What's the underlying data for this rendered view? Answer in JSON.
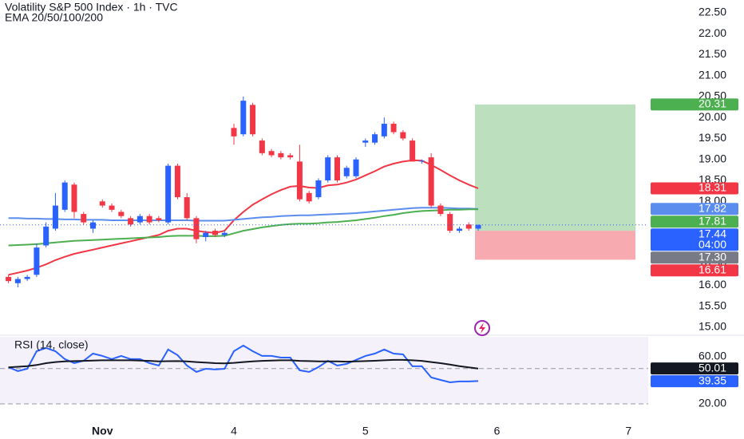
{
  "chart_data": [
    {
      "type": "candlestick",
      "title": "Volatility S&P 500 Index · 1h · TVC",
      "subtitle": "EMA 20/50/100/200",
      "x": [
        0,
        1,
        2,
        3,
        4,
        5,
        6,
        7,
        8,
        9,
        10,
        11,
        12,
        13,
        14,
        15,
        16,
        17,
        18,
        19,
        20,
        21,
        22,
        23,
        24,
        25,
        26,
        27,
        28,
        29,
        30,
        31,
        32,
        33,
        34,
        35,
        36,
        37,
        38,
        39,
        40,
        41,
        42,
        43,
        44,
        45,
        46,
        47,
        48,
        49,
        50
      ],
      "open": [
        16.2,
        16.05,
        16.15,
        16.25,
        16.95,
        17.35,
        17.8,
        18.4,
        17.7,
        17.35,
        18.0,
        17.9,
        17.75,
        17.6,
        17.5,
        17.65,
        17.6,
        17.5,
        18.85,
        18.1,
        17.6,
        17.15,
        17.3,
        17.2,
        19.75,
        19.6,
        20.3,
        19.45,
        19.2,
        19.15,
        19.1,
        18.95,
        18.2,
        18.1,
        18.5,
        19.05,
        18.6,
        18.6,
        19.4,
        19.4,
        19.55,
        19.85,
        19.65,
        19.45,
        18.95,
        19.05,
        17.9,
        17.7,
        17.3,
        17.45,
        17.35
      ],
      "high": [
        16.25,
        16.2,
        16.25,
        17.0,
        17.5,
        18.2,
        18.5,
        18.45,
        17.75,
        17.55,
        18.05,
        17.95,
        17.8,
        17.65,
        17.7,
        17.7,
        17.65,
        18.9,
        18.9,
        18.2,
        17.65,
        17.3,
        17.35,
        17.3,
        19.85,
        20.5,
        20.35,
        19.5,
        19.25,
        19.2,
        19.15,
        19.35,
        18.25,
        18.55,
        19.1,
        19.1,
        18.85,
        19.05,
        19.5,
        19.65,
        20.0,
        19.9,
        19.7,
        19.5,
        19.0,
        19.15,
        17.95,
        17.75,
        17.4,
        17.5,
        17.45
      ],
      "low": [
        16.05,
        15.95,
        16.1,
        16.2,
        16.9,
        17.3,
        17.75,
        17.6,
        17.45,
        17.25,
        17.85,
        17.75,
        17.6,
        17.4,
        17.45,
        17.45,
        17.5,
        17.45,
        18.05,
        17.55,
        17.0,
        17.05,
        17.15,
        17.15,
        19.35,
        19.55,
        19.55,
        19.1,
        19.05,
        19.0,
        19.0,
        18.0,
        17.95,
        18.05,
        18.45,
        18.45,
        18.55,
        18.55,
        19.3,
        19.35,
        19.5,
        19.6,
        19.45,
        18.95,
        18.9,
        17.85,
        17.65,
        17.25,
        17.25,
        17.3,
        17.3
      ],
      "close": [
        16.1,
        16.15,
        16.2,
        16.9,
        17.4,
        17.9,
        18.45,
        17.75,
        17.5,
        17.5,
        17.9,
        17.8,
        17.65,
        17.45,
        17.65,
        17.5,
        17.55,
        18.85,
        18.1,
        17.6,
        17.1,
        17.25,
        17.2,
        17.25,
        19.55,
        20.4,
        19.6,
        19.15,
        19.1,
        19.05,
        19.05,
        18.05,
        18.0,
        18.5,
        19.05,
        18.5,
        18.8,
        19.0,
        19.45,
        19.6,
        19.85,
        19.65,
        19.5,
        18.95,
        18.97,
        17.9,
        17.7,
        17.3,
        17.35,
        17.35,
        17.44
      ],
      "up_color": "#2962ff",
      "down_color": "#f23645",
      "series": [
        {
          "color": "#f23645",
          "values": [
            16.25,
            16.3,
            16.35,
            16.42,
            16.5,
            16.6,
            16.68,
            16.75,
            16.8,
            16.85,
            16.9,
            16.95,
            17.0,
            17.05,
            17.1,
            17.15,
            17.2,
            17.3,
            17.35,
            17.35,
            17.3,
            17.27,
            17.25,
            17.3,
            17.55,
            17.75,
            17.92,
            18.05,
            18.17,
            18.27,
            18.35,
            18.37,
            18.33,
            18.32,
            18.38,
            18.4,
            18.45,
            18.52,
            18.62,
            18.72,
            18.83,
            18.9,
            18.95,
            18.98,
            18.97,
            18.87,
            18.75,
            18.62,
            18.5,
            18.4,
            18.31
          ]
        },
        {
          "color": "#5b8def",
          "values": [
            17.6,
            17.6,
            17.59,
            17.59,
            17.58,
            17.58,
            17.57,
            17.57,
            17.56,
            17.56,
            17.56,
            17.55,
            17.55,
            17.55,
            17.55,
            17.55,
            17.55,
            17.55,
            17.55,
            17.55,
            17.54,
            17.54,
            17.54,
            17.54,
            17.56,
            17.58,
            17.6,
            17.62,
            17.63,
            17.65,
            17.66,
            17.67,
            17.67,
            17.68,
            17.69,
            17.7,
            17.71,
            17.72,
            17.74,
            17.76,
            17.78,
            17.8,
            17.82,
            17.84,
            17.85,
            17.85,
            17.85,
            17.84,
            17.83,
            17.83,
            17.82
          ]
        },
        {
          "color": "#4caf50",
          "values": [
            16.95,
            16.96,
            16.97,
            16.98,
            17.0,
            17.02,
            17.04,
            17.06,
            17.07,
            17.08,
            17.09,
            17.1,
            17.11,
            17.12,
            17.13,
            17.14,
            17.15,
            17.17,
            17.18,
            17.18,
            17.18,
            17.17,
            17.17,
            17.18,
            17.24,
            17.3,
            17.34,
            17.38,
            17.41,
            17.44,
            17.46,
            17.47,
            17.47,
            17.48,
            17.5,
            17.51,
            17.53,
            17.55,
            17.58,
            17.61,
            17.65,
            17.68,
            17.72,
            17.75,
            17.77,
            17.78,
            17.79,
            17.8,
            17.8,
            17.81,
            17.81
          ]
        }
      ],
      "countdown": "04:00",
      "position": {
        "target": 20.31,
        "entry": {
          "value": 17.3,
          "label": "17.30"
        },
        "stop": 16.61
      },
      "xlim": [
        -0.9,
        68.1
      ],
      "xticks": [
        {
          "value": 10,
          "label": "Nov"
        },
        {
          "value": 24,
          "label": "4"
        },
        {
          "value": 38,
          "label": "5"
        },
        {
          "value": 52,
          "label": "6"
        },
        {
          "value": 66,
          "label": "7"
        }
      ],
      "ylim": [
        14.81,
        22.8
      ],
      "yticks": [
        {
          "value": 15,
          "label": "15.00"
        },
        {
          "value": 15.5,
          "label": "15.50"
        },
        {
          "value": 16,
          "label": "16.00"
        },
        {
          "value": 16.5,
          "label": "16.50"
        },
        {
          "value": 17,
          "label": "17.00"
        },
        {
          "value": 17.5,
          "label": "17.50"
        },
        {
          "value": 18,
          "label": "18.00"
        },
        {
          "value": 18.5,
          "label": "18.50"
        },
        {
          "value": 19,
          "label": "19.00"
        },
        {
          "value": 19.5,
          "label": "19.50"
        },
        {
          "value": 20,
          "label": "20.00"
        },
        {
          "value": 20.5,
          "label": "20.50"
        },
        {
          "value": 21,
          "label": "21.00"
        },
        {
          "value": 21.5,
          "label": "21.50"
        },
        {
          "value": 22,
          "label": "22.00"
        },
        {
          "value": 22.5,
          "label": "22.50"
        }
      ]
    },
    {
      "type": "line",
      "title": "RSI (14, close)",
      "series": [
        {
          "color": "#2962ff",
          "values": [
            51.2,
            47.8,
            49.8,
            64.7,
            67.5,
            64.7,
            58.0,
            54.6,
            56.6,
            62.7,
            60.7,
            58.0,
            60.7,
            58.0,
            58.0,
            54.6,
            52.5,
            66.1,
            61.4,
            52.5,
            47.1,
            49.8,
            49.2,
            49.8,
            64.7,
            69.5,
            64.7,
            60.7,
            60.7,
            59.3,
            59.3,
            48.5,
            47.1,
            51.2,
            56.6,
            52.5,
            53.9,
            57.3,
            60.7,
            62.7,
            66.1,
            62.7,
            62.0,
            51.9,
            51.9,
            42.4,
            40.3,
            38.3,
            39.0,
            39.0,
            39.35
          ]
        },
        {
          "color": "#131722",
          "values": [
            51,
            51.5,
            52,
            53,
            54.5,
            55.5,
            56,
            56.3,
            56.5,
            56.8,
            57,
            57,
            57,
            57,
            56.8,
            56.5,
            56,
            56.2,
            56.3,
            56,
            55.5,
            55,
            54.5,
            54.3,
            54.8,
            55.5,
            56,
            56.5,
            56.8,
            57,
            57,
            56.5,
            56.3,
            56,
            56,
            56,
            55.8,
            56,
            56.3,
            56.6,
            57,
            57.3,
            57.3,
            57,
            56.5,
            55.5,
            54.5,
            53.3,
            52,
            51,
            50.01
          ]
        }
      ],
      "levels": [
        50,
        20
      ],
      "ylim": [
        3.7,
        76.9
      ],
      "yticks": [
        {
          "value": 20,
          "label": "20.00"
        },
        {
          "value": 60,
          "label": "60.00"
        }
      ]
    }
  ]
}
